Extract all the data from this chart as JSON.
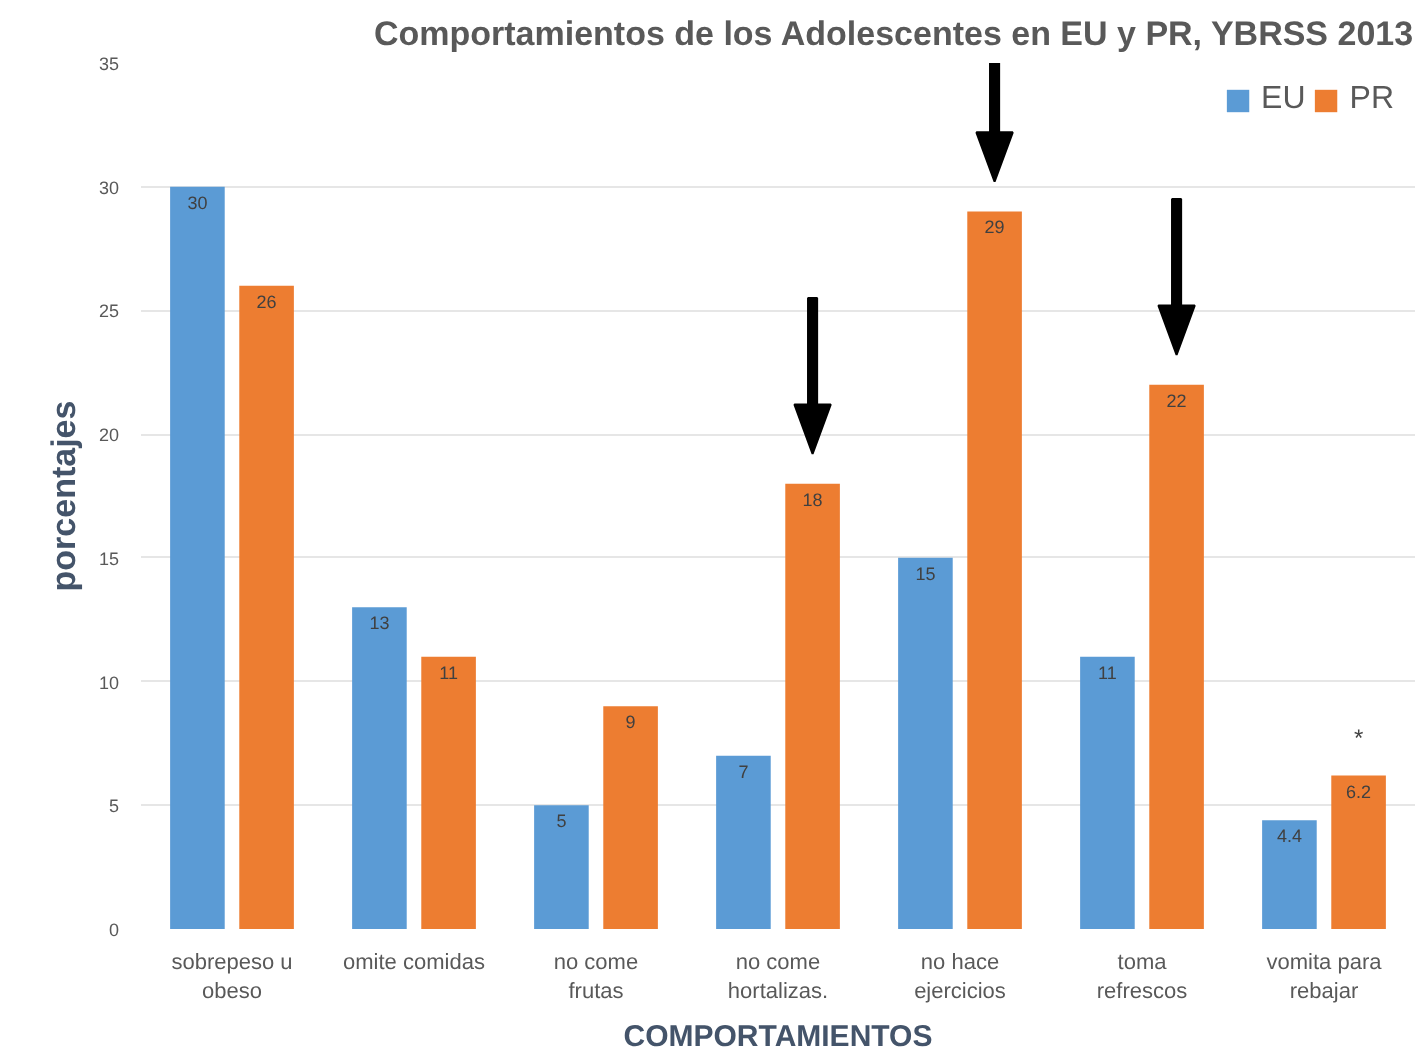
{
  "chart_data": {
    "type": "bar",
    "title": "Comportamientos de los Adolescentes en EU y PR, YBRSS 2013",
    "xlabel": "COMPORTAMIENTOS",
    "ylabel": "porcentajes",
    "categories": [
      "sobrepeso u obeso",
      "omite comidas",
      "no come frutas",
      "no come hortalizas.",
      "no hace ejercicios",
      "toma refrescos",
      "vomita para rebajar"
    ],
    "series": [
      {
        "name": "EU",
        "color": "#5b9bd5",
        "values": [
          30,
          13,
          5,
          7,
          15,
          11,
          4.4
        ]
      },
      {
        "name": "PR",
        "color": "#ed7d31",
        "values": [
          26,
          11,
          9,
          18,
          29,
          22,
          6.2
        ]
      }
    ],
    "ylim": [
      0,
      35
    ],
    "yticks": [
      0,
      5,
      10,
      15,
      20,
      25,
      30,
      35
    ],
    "grid": "y",
    "legend": "top right",
    "data_labels": true,
    "annotations": [
      "*"
    ]
  }
}
